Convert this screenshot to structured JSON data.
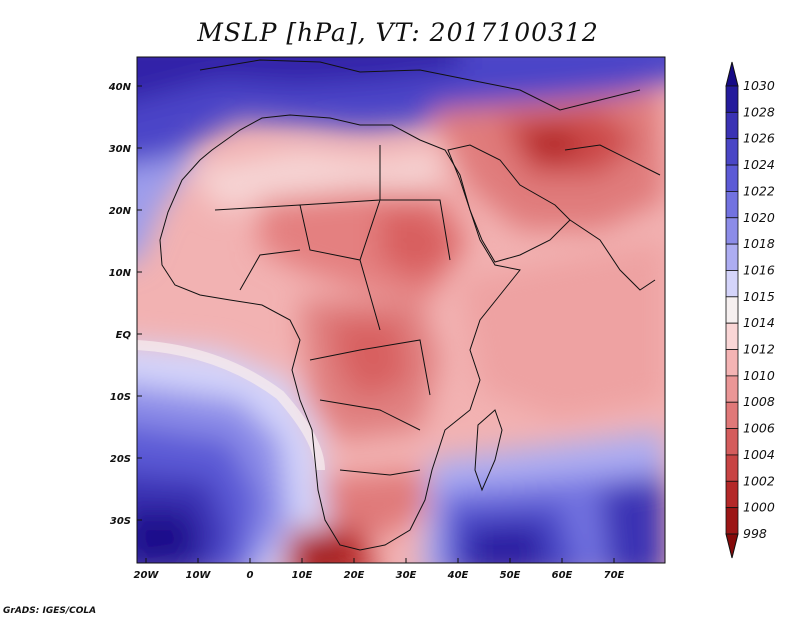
{
  "title": "MSLP [hPa], VT: 2017100312",
  "credit": "GrADS: IGES/COLA",
  "map": {
    "lon_labels": [
      "20W",
      "10W",
      "0",
      "10E",
      "20E",
      "30E",
      "40E",
      "50E",
      "60E",
      "70E"
    ],
    "lat_labels": [
      "40N",
      "30N",
      "20N",
      "10N",
      "EQ",
      "10S",
      "20S",
      "30S"
    ],
    "projection": "lat-lon",
    "field": "mean sea level pressure"
  },
  "colorbar": {
    "levels": [
      "1030",
      "1028",
      "1026",
      "1024",
      "1022",
      "1020",
      "1018",
      "1016",
      "1015",
      "1014",
      "1012",
      "1010",
      "1008",
      "1006",
      "1004",
      "1002",
      "1000",
      "998"
    ],
    "colors": [
      "#160a86",
      "#241b9c",
      "#3a32b4",
      "#4a46c6",
      "#5c5ad6",
      "#7272e0",
      "#8c8ce8",
      "#adadf2",
      "#d4d4fa",
      "#f6f0f0",
      "#fad6d6",
      "#f4b4b4",
      "#ea9696",
      "#e07878",
      "#d45c5c",
      "#c84444",
      "#b42828",
      "#9c1616",
      "#850a0a"
    ]
  },
  "regions": {
    "high_pressure": [
      "Southern Atlantic",
      "Southern Indian Ocean",
      "Mediterranean"
    ],
    "low_pressure": [
      "Arabian Peninsula / Iran",
      "Southern Africa coast"
    ]
  }
}
